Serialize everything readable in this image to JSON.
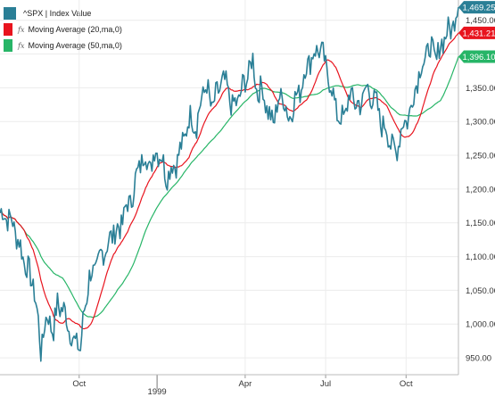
{
  "legend": {
    "items": [
      {
        "label": "^SPX | Index Value",
        "color": "#2a7f96",
        "prefix": ""
      },
      {
        "label": "Moving Average (20,ma,0)",
        "color": "#e8141e",
        "prefix": "fx"
      },
      {
        "label": "Moving Average (50,ma,0)",
        "color": "#27b567",
        "prefix": "fx"
      }
    ]
  },
  "chart_data": {
    "type": "line",
    "title": "",
    "xlabel": "",
    "ylabel": "",
    "grid": true,
    "legend_position": "top-left",
    "x_ticks": [
      {
        "label": "Oct",
        "index": 62
      },
      {
        "label": "Apr",
        "index": 192
      },
      {
        "label": "Jul",
        "index": 255
      },
      {
        "label": "Oct",
        "index": 318
      }
    ],
    "x_year_label": {
      "label": "1999",
      "index": 123
    },
    "ylim": [
      925,
      1480
    ],
    "y_ticks": [
      950,
      1000,
      1050,
      1100,
      1150,
      1200,
      1250,
      1300,
      1350,
      1400,
      1450
    ],
    "y_tick_labels": [
      "950.00",
      "1,000.00",
      "1,050.00",
      "1,100.00",
      "1,150.00",
      "1,200.00",
      "1,250.00",
      "1,300.00",
      "1,350.00",
      "1,400.00",
      "1,450.00"
    ],
    "last_values": [
      {
        "series": 0,
        "label": "1,469.25",
        "value": 1469.25
      },
      {
        "series": 1,
        "label": "1,431.21",
        "value": 1431.21
      },
      {
        "series": 2,
        "label": "1,396.10",
        "value": 1396.1
      }
    ],
    "n_points": 360,
    "anchors": [
      [
        0,
        1165
      ],
      [
        5,
        1160
      ],
      [
        10,
        1150
      ],
      [
        14,
        1125
      ],
      [
        18,
        1100
      ],
      [
        22,
        1080
      ],
      [
        27,
        1050
      ],
      [
        30,
        1000
      ],
      [
        32,
        960
      ],
      [
        35,
        1000
      ],
      [
        38,
        1010
      ],
      [
        42,
        990
      ],
      [
        45,
        1030
      ],
      [
        48,
        1025
      ],
      [
        52,
        1010
      ],
      [
        55,
        990
      ],
      [
        58,
        970
      ],
      [
        61,
        975
      ],
      [
        63,
        960
      ],
      [
        66,
        1020
      ],
      [
        70,
        1070
      ],
      [
        75,
        1080
      ],
      [
        80,
        1105
      ],
      [
        85,
        1120
      ],
      [
        90,
        1140
      ],
      [
        94,
        1140
      ],
      [
        98,
        1170
      ],
      [
        102,
        1180
      ],
      [
        106,
        1210
      ],
      [
        110,
        1240
      ],
      [
        114,
        1250
      ],
      [
        118,
        1230
      ],
      [
        122,
        1260
      ],
      [
        126,
        1250
      ],
      [
        130,
        1220
      ],
      [
        134,
        1230
      ],
      [
        138,
        1240
      ],
      [
        142,
        1260
      ],
      [
        146,
        1290
      ],
      [
        150,
        1310
      ],
      [
        154,
        1290
      ],
      [
        158,
        1340
      ],
      [
        162,
        1350
      ],
      [
        166,
        1320
      ],
      [
        170,
        1340
      ],
      [
        174,
        1360
      ],
      [
        178,
        1350
      ],
      [
        182,
        1320
      ],
      [
        186,
        1330
      ],
      [
        190,
        1350
      ],
      [
        194,
        1370
      ],
      [
        198,
        1390
      ],
      [
        202,
        1340
      ],
      [
        206,
        1350
      ],
      [
        210,
        1310
      ],
      [
        214,
        1300
      ],
      [
        218,
        1330
      ],
      [
        222,
        1340
      ],
      [
        226,
        1300
      ],
      [
        230,
        1330
      ],
      [
        234,
        1340
      ],
      [
        238,
        1370
      ],
      [
        242,
        1390
      ],
      [
        246,
        1400
      ],
      [
        250,
        1410
      ],
      [
        254,
        1390
      ],
      [
        258,
        1360
      ],
      [
        262,
        1330
      ],
      [
        266,
        1300
      ],
      [
        270,
        1310
      ],
      [
        274,
        1340
      ],
      [
        278,
        1330
      ],
      [
        282,
        1320
      ],
      [
        286,
        1350
      ],
      [
        290,
        1340
      ],
      [
        294,
        1330
      ],
      [
        298,
        1300
      ],
      [
        302,
        1290
      ],
      [
        306,
        1270
      ],
      [
        310,
        1250
      ],
      [
        314,
        1290
      ],
      [
        318,
        1300
      ],
      [
        322,
        1320
      ],
      [
        326,
        1360
      ],
      [
        330,
        1380
      ],
      [
        334,
        1400
      ],
      [
        338,
        1410
      ],
      [
        342,
        1390
      ],
      [
        346,
        1420
      ],
      [
        350,
        1430
      ],
      [
        354,
        1440
      ],
      [
        359,
        1469
      ]
    ],
    "noise_amplitude": 18,
    "series": [
      {
        "name": "^SPX | Index Value",
        "color": "#2a7f96",
        "kind": "price"
      },
      {
        "name": "Moving Average (20,ma,0)",
        "color": "#e8141e",
        "kind": "ma",
        "period": 20
      },
      {
        "name": "Moving Average (50,ma,0)",
        "color": "#27b567",
        "kind": "ma",
        "period": 50
      }
    ]
  }
}
